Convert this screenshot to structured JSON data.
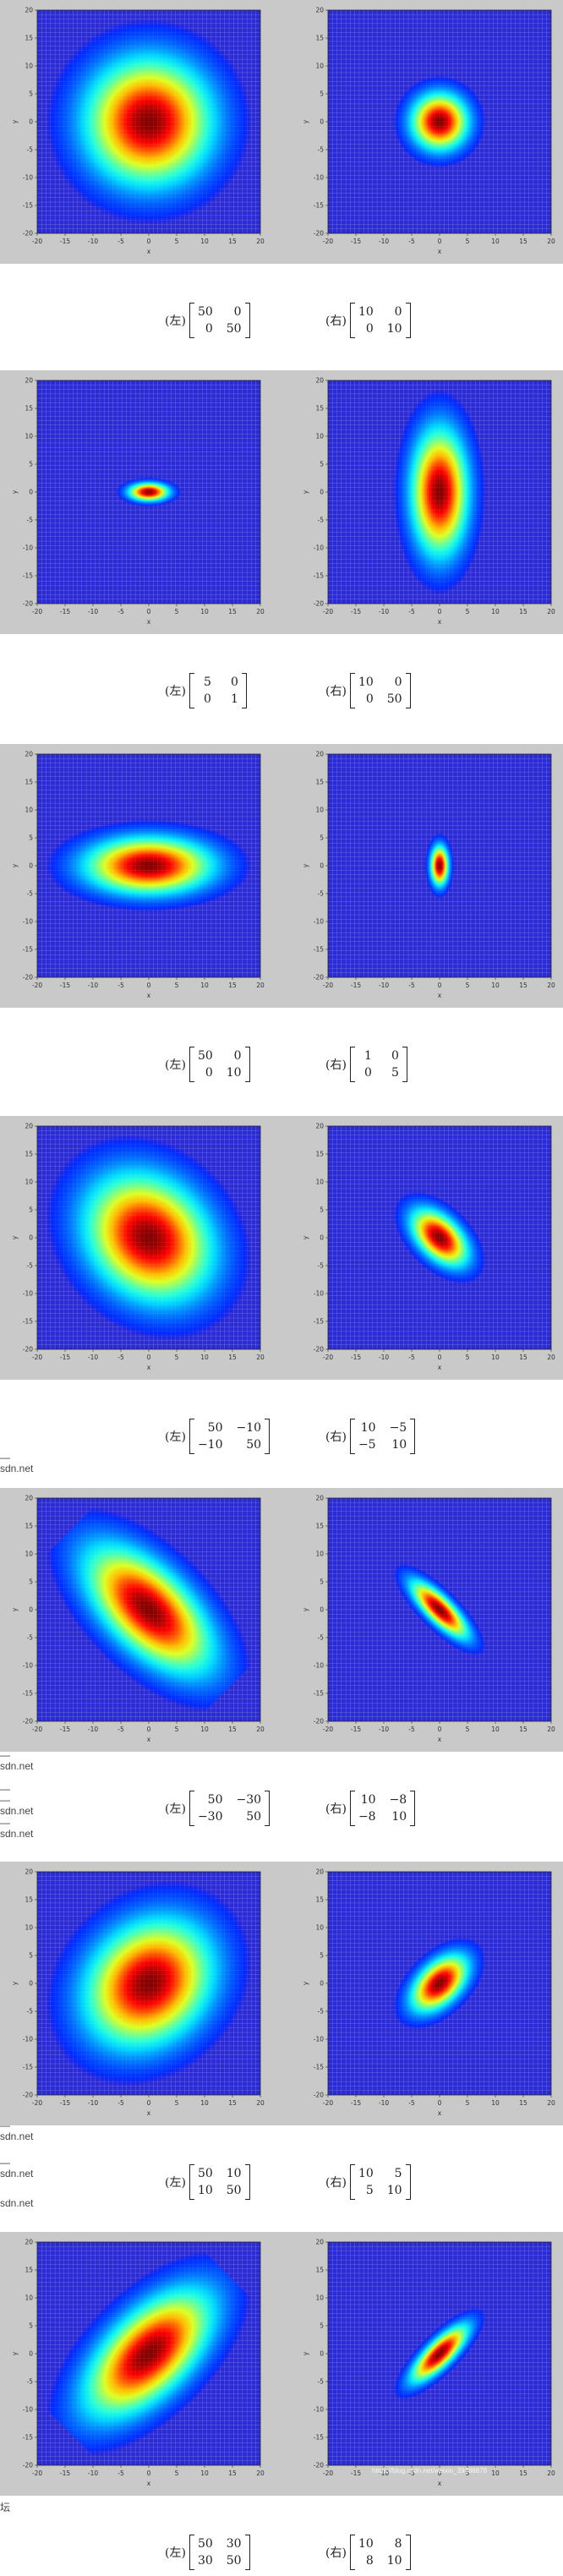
{
  "colors": {
    "band": "#c9c9c9",
    "plot_bg": "#2a2ad6",
    "grid": "#8c8ce6",
    "frame": "#222222"
  },
  "axes": {
    "xlabel": "x",
    "ylabel": "y",
    "xticks": [
      "-20",
      "-15",
      "-10",
      "-5",
      "0",
      "5",
      "10",
      "15",
      "20"
    ],
    "yticks": [
      "20",
      "15",
      "10",
      "5",
      "0",
      "-5",
      "-10",
      "-15",
      "-20"
    ],
    "xlim": [
      -20,
      20
    ],
    "ylim": [
      -20,
      20
    ]
  },
  "left_label": "(左)",
  "right_label": "(右)",
  "figures": [
    {
      "left": {
        "label": "(左)",
        "cov": [
          [
            "50",
            "0"
          ],
          [
            "0",
            "50"
          ]
        ]
      },
      "right": {
        "label": "(右)",
        "cov": [
          [
            "10",
            "0"
          ],
          [
            "0",
            "10"
          ]
        ]
      }
    },
    {
      "left": {
        "label": "(左)",
        "cov": [
          [
            "5",
            "0"
          ],
          [
            "0",
            "1"
          ]
        ]
      },
      "right": {
        "label": "(右)",
        "cov": [
          [
            "10",
            "0"
          ],
          [
            "0",
            "50"
          ]
        ]
      }
    },
    {
      "left": {
        "label": "(左)",
        "cov": [
          [
            "50",
            "0"
          ],
          [
            "0",
            "10"
          ]
        ]
      },
      "right": {
        "label": "(右)",
        "cov": [
          [
            "1",
            "0"
          ],
          [
            "0",
            "5"
          ]
        ]
      }
    },
    {
      "left": {
        "label": "(左)",
        "cov": [
          [
            "50",
            "−10"
          ],
          [
            "−10",
            "50"
          ]
        ]
      },
      "right": {
        "label": "(右)",
        "cov": [
          [
            "10",
            "−5"
          ],
          [
            "−5",
            "10"
          ]
        ]
      }
    },
    {
      "left": {
        "label": "(左)",
        "cov": [
          [
            "50",
            "−30"
          ],
          [
            "−30",
            "50"
          ]
        ]
      },
      "right": {
        "label": "(右)",
        "cov": [
          [
            "10",
            "−8"
          ],
          [
            "−8",
            "10"
          ]
        ]
      }
    },
    {
      "left": {
        "label": "(左)",
        "cov": [
          [
            "50",
            "10"
          ],
          [
            "10",
            "50"
          ]
        ]
      },
      "right": {
        "label": "(右)",
        "cov": [
          [
            "10",
            "5"
          ],
          [
            "5",
            "10"
          ]
        ]
      }
    },
    {
      "left": {
        "label": "(左)",
        "cov": [
          [
            "50",
            "30"
          ],
          [
            "30",
            "50"
          ]
        ]
      },
      "right": {
        "label": "(右)",
        "cov": [
          [
            "10",
            "8"
          ],
          [
            "8",
            "10"
          ]
        ]
      }
    }
  ],
  "cov_values": [
    [
      [
        50,
        0,
        0,
        50
      ],
      [
        10,
        0,
        0,
        10
      ]
    ],
    [
      [
        5,
        0,
        0,
        1
      ],
      [
        10,
        0,
        0,
        50
      ]
    ],
    [
      [
        50,
        0,
        0,
        10
      ],
      [
        1,
        0,
        0,
        5
      ]
    ],
    [
      [
        50,
        -10,
        -10,
        50
      ],
      [
        10,
        -5,
        -5,
        10
      ]
    ],
    [
      [
        50,
        -30,
        -30,
        50
      ],
      [
        10,
        -8,
        -8,
        10
      ]
    ],
    [
      [
        50,
        10,
        10,
        50
      ],
      [
        10,
        5,
        5,
        10
      ]
    ],
    [
      [
        50,
        30,
        30,
        50
      ],
      [
        10,
        8,
        8,
        10
      ]
    ]
  ],
  "side_fragments": [
    "—\nsdn.net",
    "—\nsdn.net",
    "—\n—\nsdn.net",
    "—\nsdn.net",
    "—\nsdn.net",
    "—\nsdn.net",
    "sdn.net",
    "坛"
  ],
  "watermark": "https://blog.csdn.net/weixin_39488878"
}
